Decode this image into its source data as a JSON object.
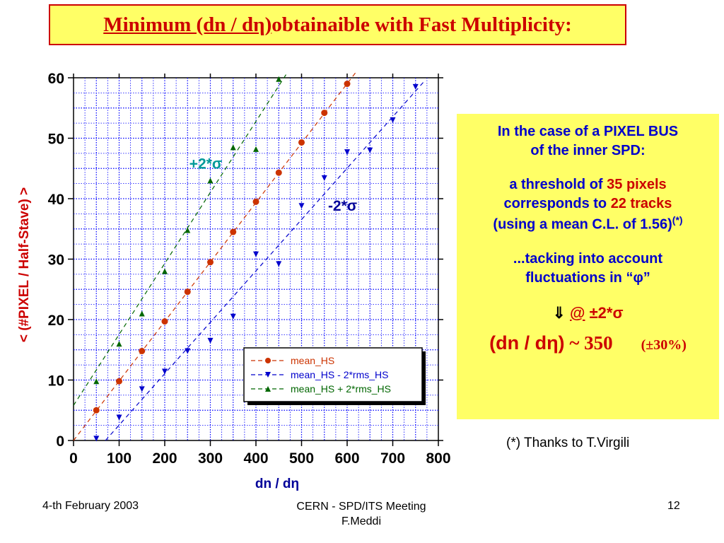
{
  "slide": {
    "title_underlined": "Minimum (dn / dη)",
    "title_rest": " obtainaible with Fast Multiplicity:",
    "info": {
      "line1": "In the case of a PIXEL BUS",
      "line2": "of the inner SPD:",
      "line3a": "a threshold of ",
      "line3b": "35 pixels",
      "line4a": "corresponds to ",
      "line4b": "22 tracks",
      "line5": "(using a mean C.L. of 1.56)",
      "line5_sup": "(*)",
      "line6": "...tacking into account",
      "line7": "fluctuations in “φ”",
      "arrow": "⇓",
      "arrow_at": "@",
      "arrow_val": " ±2*σ",
      "result_a": "(dn / dη)",
      "result_b": " ~ 350",
      "result_pct": "(±30%)"
    },
    "thanks": "(*) Thanks to T.Virgili",
    "footer": {
      "date": "4-th February 2003",
      "center_line1": "CERN - SPD/ITS Meeting",
      "center_line2": "F.Meddi",
      "page": "12"
    },
    "colors": {
      "title_bg": "#ffff66",
      "title_text": "#cc0000",
      "info_text": "#0000cc",
      "grid": "#0000ff"
    }
  },
  "chart_data": {
    "type": "scatter",
    "xlabel": "dn / dη",
    "ylabel": "< (#PIXEL / Half-Stave) >",
    "xlim": [
      0,
      800
    ],
    "ylim": [
      0,
      60
    ],
    "xticks": [
      0,
      100,
      200,
      300,
      400,
      500,
      600,
      700,
      800
    ],
    "yticks": [
      0,
      10,
      20,
      30,
      40,
      50,
      60
    ],
    "grid": true,
    "legend_position": "lower-right",
    "annotations": [
      {
        "text": "+2*σ",
        "x": 290,
        "y": 45,
        "color": "#009999"
      },
      {
        "text": "-2*σ",
        "x": 590,
        "y": 38,
        "color": "#000099"
      }
    ],
    "series": [
      {
        "name": "mean_HS",
        "color": "#cc3300",
        "marker": "circle",
        "x": [
          50,
          100,
          150,
          200,
          250,
          300,
          350,
          400,
          450,
          500,
          550,
          600
        ],
        "y": [
          5.0,
          9.8,
          14.8,
          19.7,
          24.6,
          29.5,
          34.5,
          39.5,
          44.3,
          49.3,
          54.2,
          59.0
        ],
        "fit": [
          [
            0,
            0
          ],
          [
            620,
            61
          ]
        ]
      },
      {
        "name": "mean_HS - 2*rms_HS",
        "color": "#0000cc",
        "marker": "triangle-down",
        "x": [
          50,
          100,
          150,
          200,
          250,
          300,
          350,
          400,
          450,
          500,
          550,
          600,
          650,
          700,
          750
        ],
        "y": [
          0.3,
          3.8,
          8.5,
          11.4,
          14.8,
          16.5,
          20.5,
          30.8,
          29.2,
          38.8,
          43.4,
          47.7,
          48.0,
          53.0,
          58.5
        ],
        "fit": [
          [
            70,
            0
          ],
          [
            770,
            59.5
          ]
        ]
      },
      {
        "name": "mean_HS + 2*rms_HS",
        "color": "#006600",
        "marker": "triangle-up",
        "x": [
          50,
          100,
          150,
          200,
          250,
          300,
          350,
          400,
          450
        ],
        "y": [
          9.8,
          16.0,
          21.0,
          28.0,
          34.8,
          43.0,
          48.5,
          48.2,
          59.8
        ],
        "fit": [
          [
            0,
            5.8
          ],
          [
            470,
            61
          ]
        ]
      }
    ]
  }
}
